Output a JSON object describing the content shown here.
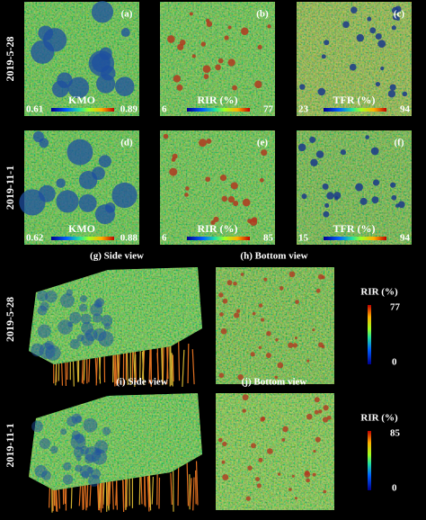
{
  "maps": {
    "rows": [
      {
        "date": "2019-5-28",
        "panels": [
          {
            "letter": "(a)",
            "index": "KMO",
            "min": "0.61",
            "max": "0.89"
          },
          {
            "letter": "(b)",
            "index": "RIR (%)",
            "min": "6",
            "max": "77"
          },
          {
            "letter": "(c)",
            "index": "TFR (%)",
            "min": "23",
            "max": "94"
          }
        ]
      },
      {
        "date": "2019-11-1",
        "panels": [
          {
            "letter": "(d)",
            "index": "KMO",
            "min": "0.62",
            "max": "0.88"
          },
          {
            "letter": "(e)",
            "index": "RIR (%)",
            "min": "6",
            "max": "85"
          },
          {
            "letter": "(f)",
            "index": "TFR (%)",
            "min": "15",
            "max": "94"
          }
        ]
      }
    ]
  },
  "views": {
    "rows": [
      {
        "date": "2019-5-28",
        "side_title": "(g) Side view",
        "bottom_title": "(h) Bottom view",
        "legend_label": "RIR (%)",
        "max": "77",
        "min": "0"
      },
      {
        "date": "2019-11-1",
        "side_title": "(i) Side view",
        "bottom_title": "(j) Bottom view",
        "legend_label": "RIR (%)",
        "max": "85",
        "min": "0"
      }
    ]
  }
}
